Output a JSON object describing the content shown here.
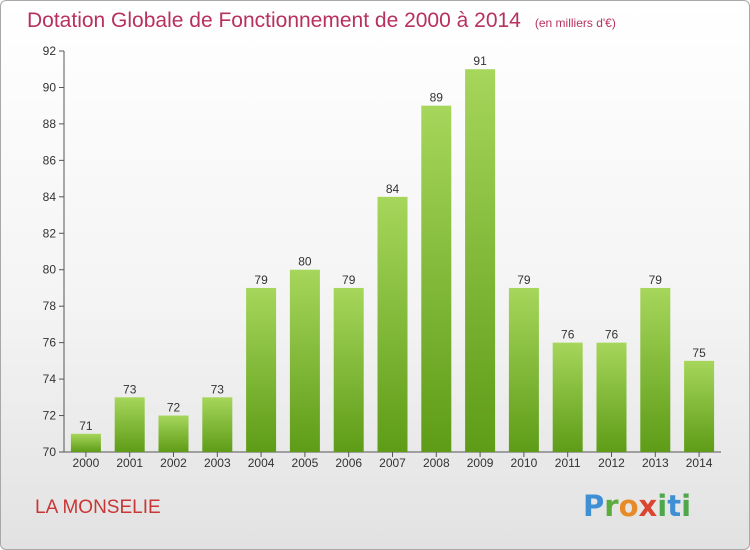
{
  "header": {
    "title": "Dotation Globale de Fonctionnement de 2000 à 2014",
    "unit": "(en milliers d'€)"
  },
  "footer": {
    "commune": "LA MONSELIE",
    "logo_text": "Proxiti"
  },
  "colors": {
    "title": "#b8305f",
    "commune": "#c93636",
    "bar_top": "#a6d65b",
    "bar_bottom": "#5e9c17"
  },
  "chart_data": {
    "type": "bar",
    "categories": [
      "2000",
      "2001",
      "2002",
      "2003",
      "2004",
      "2005",
      "2006",
      "2007",
      "2008",
      "2009",
      "2010",
      "2011",
      "2012",
      "2013",
      "2014"
    ],
    "values": [
      71,
      73,
      72,
      73,
      79,
      80,
      79,
      84,
      89,
      91,
      79,
      76,
      76,
      79,
      75
    ],
    "ylim": [
      70,
      92
    ],
    "yticks": [
      70,
      72,
      74,
      76,
      78,
      80,
      82,
      84,
      86,
      88,
      90,
      92
    ],
    "data_labels": true,
    "grid": false,
    "legend": "none"
  }
}
